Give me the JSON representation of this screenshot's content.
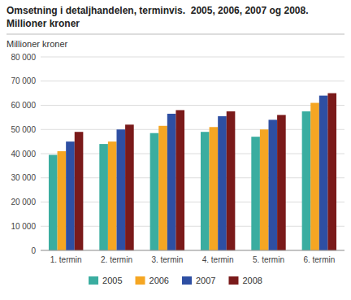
{
  "chart_data": {
    "type": "bar",
    "title": "Omsetning i detaljhandelen, terminvis.  2005, 2006, 2007 og 2008.",
    "subtitle": "Millioner kroner",
    "ylabel": "Millioner kroner",
    "categories": [
      "1. termin",
      "2. termin",
      "3. termin",
      "4. termin",
      "5. termin",
      "6. termin"
    ],
    "series": [
      {
        "name": "2005",
        "color": "#3aada0",
        "values": [
          39500,
          44000,
          48500,
          49000,
          47000,
          57500
        ]
      },
      {
        "name": "2006",
        "color": "#f5a623",
        "values": [
          41000,
          45000,
          51500,
          51000,
          50000,
          61000
        ]
      },
      {
        "name": "2007",
        "color": "#2e4fa3",
        "values": [
          45000,
          50000,
          56500,
          55500,
          54000,
          64000
        ]
      },
      {
        "name": "2008",
        "color": "#7a1a1a",
        "values": [
          49000,
          52000,
          58000,
          57500,
          56000,
          65000
        ]
      }
    ],
    "ylim": [
      0,
      80000
    ],
    "yticks": [
      0,
      {
        "value": 10000,
        "label": "10 000"
      },
      {
        "value": 20000,
        "label": "20 000"
      },
      {
        "value": 30000,
        "label": "30 000"
      },
      {
        "value": 40000,
        "label": "40 000"
      },
      {
        "value": 50000,
        "label": "50 000"
      },
      {
        "value": 60000,
        "label": "60 000"
      },
      {
        "value": 70000,
        "label": "70 000"
      },
      {
        "value": 80000,
        "label": "80 000"
      }
    ],
    "grid": true,
    "legend": "bottom"
  }
}
